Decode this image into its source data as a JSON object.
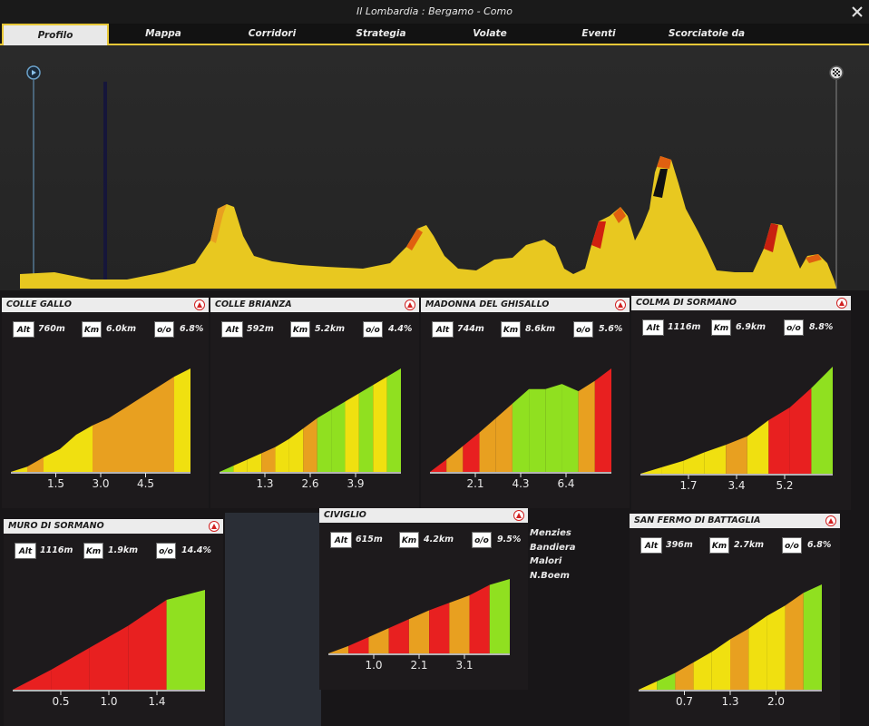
{
  "window": {
    "title": "Il Lombardia : Bergamo - Como"
  },
  "tabs": [
    {
      "label": "Profilo",
      "active": true
    },
    {
      "label": "Mappa"
    },
    {
      "label": "Corridori"
    },
    {
      "label": "Strategia"
    },
    {
      "label": "Volate"
    },
    {
      "label": "Eventi"
    },
    {
      "label": "Scorciatoie da tastiera"
    }
  ],
  "stat_labels": {
    "alt": "Alt",
    "km": "Km",
    "pct": "o/o"
  },
  "climbs": [
    {
      "name": "Colle Gallo",
      "alt": "760m",
      "km": "6.0km",
      "pct": "6.8%",
      "ticks": [
        "1.5",
        "3.0",
        "4.5"
      ],
      "segments": [
        "#f0e010",
        "#e8a020",
        "#f0e010",
        "#f0e010",
        "#f0e010",
        "#e8a020",
        "#e8a020",
        "#e8a020",
        "#e8a020",
        "#e8a020",
        "#f0e010"
      ],
      "heights": [
        0.05,
        0.14,
        0.22,
        0.36,
        0.45,
        0.52,
        0.62,
        0.72,
        0.82,
        0.92,
        1.0
      ]
    },
    {
      "name": "Colle Brianza",
      "alt": "592m",
      "km": "5.2km",
      "pct": "4.4%",
      "ticks": [
        "1.3",
        "2.6",
        "3.9"
      ],
      "segments": [
        "#90e020",
        "#f0e010",
        "#f0e010",
        "#e8a020",
        "#f0e010",
        "#f0e010",
        "#e8a020",
        "#90e020",
        "#90e020",
        "#f0e010",
        "#90e020",
        "#f0e010",
        "#90e020"
      ],
      "heights": [
        0.06,
        0.12,
        0.18,
        0.24,
        0.32,
        0.42,
        0.52,
        0.6,
        0.68,
        0.76,
        0.84,
        0.92,
        1.0
      ]
    },
    {
      "name": "Madonna del Ghisallo",
      "alt": "744m",
      "km": "8.6km",
      "pct": "5.6%",
      "ticks": [
        "2.1",
        "4.3",
        "6.4"
      ],
      "segments": [
        "#e82020",
        "#e8a020",
        "#e82020",
        "#e8a020",
        "#e8a020",
        "#90e020",
        "#90e020",
        "#90e020",
        "#90e020",
        "#e8a020",
        "#e82020"
      ],
      "heights": [
        0.12,
        0.25,
        0.38,
        0.52,
        0.66,
        0.8,
        0.8,
        0.85,
        0.78,
        0.88,
        1.0
      ]
    },
    {
      "name": "Colma di Sormano",
      "alt": "1116m",
      "km": "6.9km",
      "pct": "8.8%",
      "ticks": [
        "1.7",
        "3.4",
        "5.2"
      ],
      "segments": [
        "#f0e010",
        "#f0e010",
        "#f0e010",
        "#f0e010",
        "#e8a020",
        "#f0e010",
        "#e82020",
        "#e82020",
        "#90e020"
      ],
      "heights": [
        0.06,
        0.12,
        0.2,
        0.27,
        0.35,
        0.5,
        0.62,
        0.8,
        1.0
      ]
    },
    {
      "name": "Muro di Sormano",
      "alt": "1116m",
      "km": "1.9km",
      "pct": "14.4%",
      "ticks": [
        "0.5",
        "1.0",
        "1.4"
      ],
      "segments": [
        "#e82020",
        "#e82020",
        "#e82020",
        "#e82020",
        "#90e020"
      ],
      "heights": [
        0.2,
        0.42,
        0.64,
        0.9,
        1.0
      ]
    },
    {
      "name": "Civiglio",
      "alt": "615m",
      "km": "4.2km",
      "pct": "9.5%",
      "ticks": [
        "1.0",
        "2.1",
        "3.1"
      ],
      "segments": [
        "#e8a020",
        "#e82020",
        "#e8a020",
        "#e82020",
        "#e8a020",
        "#e82020",
        "#e8a020",
        "#e82020",
        "#90e020"
      ],
      "heights": [
        0.1,
        0.22,
        0.34,
        0.46,
        0.58,
        0.68,
        0.78,
        0.92,
        1.0
      ]
    },
    {
      "name": "San Fermo di Battaglia",
      "alt": "396m",
      "km": "2.7km",
      "pct": "6.8%",
      "ticks": [
        "0.7",
        "1.3",
        "2.0"
      ],
      "segments": [
        "#f0e010",
        "#90e020",
        "#e8a020",
        "#f0e010",
        "#f0e010",
        "#e8a020",
        "#f0e010",
        "#f0e010",
        "#e8a020",
        "#90e020"
      ],
      "heights": [
        0.08,
        0.16,
        0.26,
        0.36,
        0.48,
        0.58,
        0.7,
        0.8,
        0.92,
        1.0
      ]
    }
  ],
  "riders": [
    "Menzies",
    "Bandiera",
    "Malori",
    "N.Boem"
  ],
  "colors": {
    "accent": "#e8c838",
    "profile_fill": "#e8c820"
  }
}
